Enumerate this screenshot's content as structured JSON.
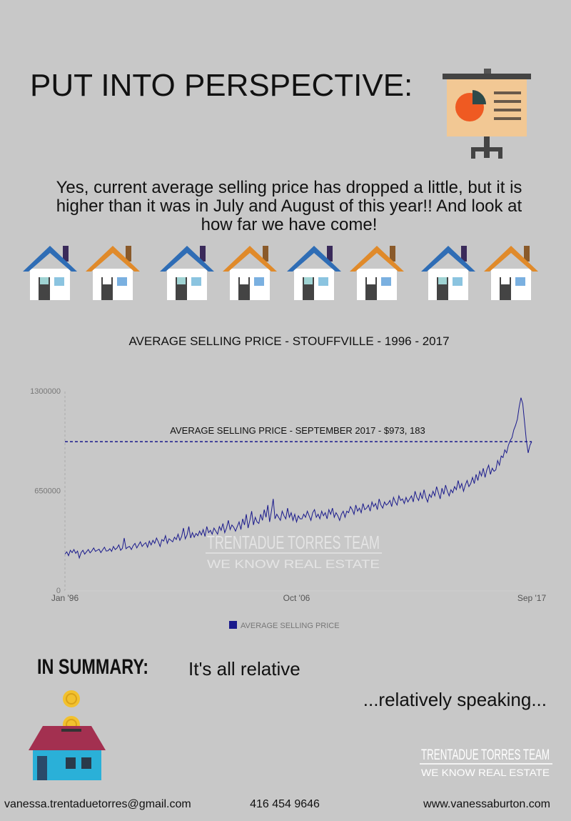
{
  "header": {
    "title": "PUT INTO PERSPECTIVE:"
  },
  "intro": [
    "Yes, current average selling price has dropped a little, but it is",
    "higher than it was in July and August of this year!! And look at",
    "how far we have come!"
  ],
  "chart_data": {
    "type": "line",
    "title": "AVERAGE SELLING PRICE - STOUFFVILLE - 1996 - 2017",
    "categories": [
      "Jan '96",
      null,
      null,
      null,
      null,
      null,
      null,
      null,
      null,
      null,
      null,
      null,
      null,
      null,
      null,
      null,
      null,
      null,
      null,
      null,
      null,
      null,
      null,
      null,
      null,
      null,
      null,
      null,
      null,
      null,
      null,
      null,
      null,
      null,
      null,
      null,
      null,
      null,
      null,
      null,
      null,
      null,
      null,
      null,
      null,
      null,
      null,
      null,
      null,
      null,
      null,
      null,
      null,
      null,
      null,
      null,
      null,
      null,
      null,
      null,
      null,
      null,
      null,
      null,
      null,
      null,
      null,
      null,
      null,
      null,
      null,
      null,
      null,
      null,
      null,
      null,
      null,
      null,
      null,
      null,
      null,
      null,
      null,
      null,
      null,
      null,
      null,
      null,
      null,
      null,
      null,
      null,
      null,
      null,
      null,
      null,
      null,
      null,
      null,
      null,
      null,
      null,
      null,
      null,
      null,
      null,
      null,
      null,
      null,
      null,
      null,
      null,
      null,
      null,
      null,
      null,
      null,
      null,
      null,
      null,
      null,
      null,
      null,
      null,
      null,
      null,
      null,
      null,
      null,
      "Oct '06",
      null,
      null,
      null,
      null,
      null,
      null,
      null,
      null,
      null,
      null,
      null,
      null,
      null,
      null,
      null,
      null,
      null,
      null,
      null,
      null,
      null,
      null,
      null,
      null,
      null,
      null,
      null,
      null,
      null,
      null,
      null,
      null,
      null,
      null,
      null,
      null,
      null,
      null,
      null,
      null,
      null,
      null,
      null,
      null,
      null,
      null,
      null,
      null,
      null,
      null,
      null,
      null,
      null,
      null,
      null,
      null,
      null,
      null,
      null,
      null,
      null,
      null,
      null,
      null,
      null,
      null,
      null,
      null,
      null,
      null,
      null,
      null,
      null,
      null,
      null,
      null,
      null,
      null,
      null,
      null,
      null,
      null,
      null,
      null,
      null,
      null,
      null,
      null,
      null,
      null,
      null,
      null,
      null,
      null,
      null,
      null,
      null,
      null,
      null,
      null,
      null,
      null,
      null,
      null,
      null,
      null,
      null,
      null,
      null,
      null,
      null,
      null,
      null,
      null,
      null,
      null,
      null,
      null,
      null,
      null,
      null,
      null,
      null,
      null,
      null,
      null,
      null,
      null,
      null,
      null,
      "Sep '17"
    ],
    "series": [
      {
        "name": "AVERAGE SELLING PRICE",
        "color": "#1a1a8c",
        "values": [
          240000,
          255000,
          230000,
          265000,
          250000,
          270000,
          245000,
          260000,
          215000,
          250000,
          265000,
          240000,
          255000,
          270000,
          248000,
          262000,
          280000,
          258000,
          265000,
          272000,
          250000,
          268000,
          285000,
          260000,
          262000,
          275000,
          258000,
          290000,
          270000,
          280000,
          300000,
          265000,
          278000,
          345000,
          275000,
          285000,
          290000,
          270000,
          295000,
          310000,
          280000,
          300000,
          320000,
          290000,
          305000,
          315000,
          285000,
          325000,
          300000,
          330000,
          310000,
          345000,
          320000,
          290000,
          335000,
          325000,
          360000,
          310000,
          340000,
          330000,
          320000,
          350000,
          335000,
          370000,
          330000,
          355000,
          410000,
          340000,
          365000,
          420000,
          345000,
          380000,
          350000,
          375000,
          360000,
          390000,
          365000,
          400000,
          355000,
          420000,
          380000,
          395000,
          370000,
          410000,
          390000,
          370000,
          420000,
          395000,
          440000,
          380000,
          410000,
          460000,
          400000,
          430000,
          415000,
          390000,
          420000,
          450000,
          400000,
          470000,
          430000,
          500000,
          410000,
          460000,
          520000,
          430000,
          480000,
          450000,
          440000,
          500000,
          460000,
          530000,
          480000,
          560000,
          450000,
          520000,
          600000,
          470000,
          500000,
          480000,
          460000,
          520000,
          490000,
          470000,
          540000,
          480000,
          510000,
          460000,
          500000,
          450000,
          490000,
          470000,
          470000,
          500000,
          480000,
          520000,
          490000,
          460000,
          510000,
          530000,
          480000,
          500000,
          470000,
          520000,
          490000,
          510000,
          470000,
          530000,
          500000,
          540000,
          480000,
          510000,
          490000,
          460000,
          500000,
          520000,
          480000,
          520000,
          510000,
          550000,
          530000,
          500000,
          560000,
          520000,
          540000,
          510000,
          570000,
          530000,
          540000,
          560000,
          520000,
          580000,
          550000,
          570000,
          530000,
          600000,
          560000,
          540000,
          580000,
          560000,
          570000,
          590000,
          550000,
          610000,
          580000,
          560000,
          620000,
          590000,
          600000,
          570000,
          610000,
          580000,
          600000,
          620000,
          580000,
          650000,
          610000,
          590000,
          640000,
          600000,
          660000,
          610000,
          580000,
          630000,
          610000,
          650000,
          620000,
          680000,
          640000,
          600000,
          670000,
          630000,
          690000,
          650000,
          620000,
          660000,
          640000,
          680000,
          660000,
          720000,
          670000,
          700000,
          650000,
          690000,
          720000,
          680000,
          700000,
          740000,
          700000,
          760000,
          720000,
          780000,
          750000,
          800000,
          740000,
          790000,
          820000,
          760000,
          800000,
          780000,
          790000,
          850000,
          820000,
          880000,
          870000,
          920000,
          900000,
          950000,
          980000,
          1000000,
          1050000,
          1080000,
          1120000,
          1200000,
          1260000,
          1220000,
          1100000,
          980000,
          900000,
          950000,
          973183
        ]
      }
    ],
    "annotation": {
      "text": "AVERAGE SELLING PRICE - SEPTEMBER 2017 - $973, 183",
      "value": 973183,
      "color": "#1a1a8c"
    },
    "ylim": [
      0,
      1300000
    ],
    "yticks": [
      0,
      650000,
      1300000
    ]
  },
  "watermark": {
    "name": "TRENTADUE TORRES TEAM",
    "tagline": "WE KNOW REAL ESTATE"
  },
  "summary": {
    "heading": "IN SUMMARY:",
    "line1": "It's all relative",
    "line2": "...relatively speaking..."
  },
  "logo": {
    "name": "TRENTADUE TORRES TEAM",
    "tagline": "WE KNOW REAL ESTATE"
  },
  "footer": {
    "email": "vanessa.trentaduetorres@gmail.com",
    "phone": "416 454 9646",
    "website": "www.vanessaburton.com"
  }
}
